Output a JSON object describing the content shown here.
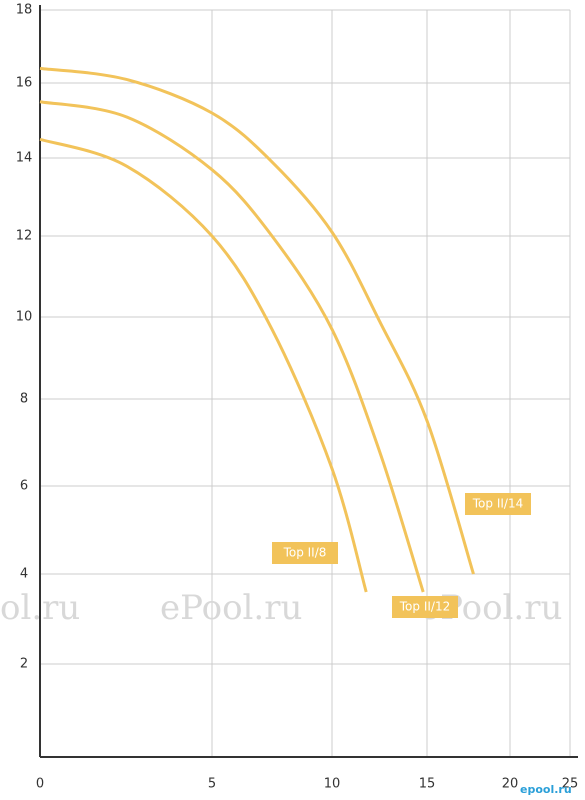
{
  "chart_data": {
    "type": "line",
    "xlim": [
      0,
      25
    ],
    "xticks": [
      0,
      5,
      10,
      15,
      20,
      25
    ],
    "ylim": [
      0,
      18
    ],
    "yticks": [
      2,
      4,
      6,
      8,
      10,
      12,
      14,
      16,
      18
    ],
    "grid": true,
    "series": [
      {
        "name": "Top II/8",
        "color": "#f2c35a",
        "x": [
          0,
          2.5,
          5,
          7.5,
          10,
          11.8
        ],
        "values": [
          14.5,
          13.8,
          12.0,
          9.7,
          6.4,
          3.6
        ]
      },
      {
        "name": "Top II/12",
        "color": "#f2c35a",
        "x": [
          0,
          2.5,
          5,
          7.5,
          10,
          12.5,
          14.8
        ],
        "values": [
          15.5,
          15.1,
          13.7,
          12.0,
          9.7,
          6.8,
          3.6
        ]
      },
      {
        "name": "Top II/14",
        "color": "#f2c35a",
        "x": [
          0,
          2.5,
          5,
          7.5,
          10,
          12.5,
          15,
          17.8
        ],
        "values": [
          16.4,
          16.1,
          15.2,
          13.9,
          12.1,
          9.9,
          7.5,
          4.0
        ]
      }
    ],
    "watermarks": [
      "ol.ru",
      "ePool.ru",
      "ePool.ru",
      "epool.ru"
    ]
  }
}
